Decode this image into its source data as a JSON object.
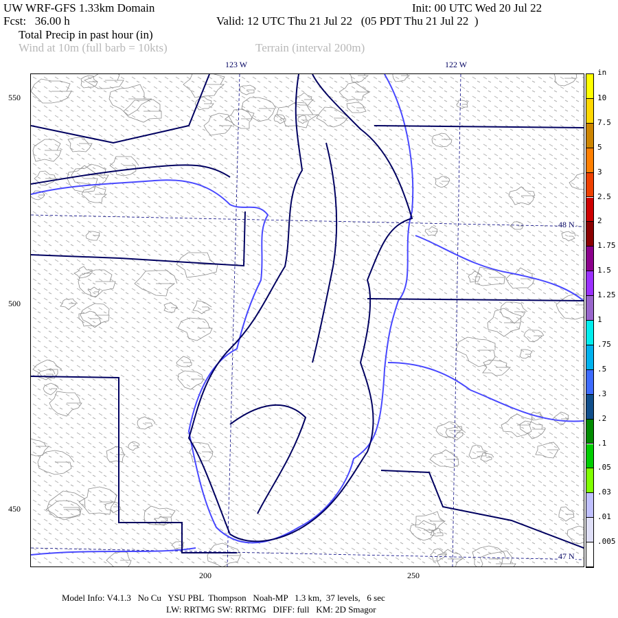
{
  "header": {
    "model_title": "UW WRF-GFS 1.33km Domain",
    "init": "Init: 00 UTC Wed 20 Jul 22",
    "fcst": "Fcst:   36.00 h",
    "valid": "Valid: 12 UTC Thu 21 Jul 22   (05 PDT Thu 21 Jul 22  )",
    "field": "Total Precip in past hour (in)",
    "overlay_wind": "Wind at 10m (full barb = 10kts)",
    "overlay_terrain": "Terrain (interval 200m)"
  },
  "map": {
    "lon_labels": [
      "123 W",
      "122 W"
    ],
    "lat_labels": [
      "48 N",
      "47 N"
    ],
    "y_ticks": [
      "550",
      "500",
      "450"
    ],
    "x_ticks": [
      "200",
      "250"
    ],
    "colors": {
      "coastline": "#000060",
      "rivers": "#4040ff",
      "terrain": "#909090",
      "grid": "#000080"
    }
  },
  "colorbar": {
    "unit": "in",
    "labels": [
      "10",
      "7.5",
      "5",
      "3",
      "2.5",
      "2",
      "1.75",
      "1.5",
      "1.25",
      "1",
      ".75",
      ".5",
      ".3",
      ".2",
      ".1",
      ".05",
      ".03",
      ".01",
      ".005"
    ],
    "colors": [
      "#ffff00",
      "#ffd700",
      "#cd8500",
      "#ff7f00",
      "#ee4000",
      "#cd0000",
      "#8b0000",
      "#8b008b",
      "#9b30ff",
      "#9966cc",
      "#00eeee",
      "#00b2ee",
      "#3d6bff",
      "#104e8b",
      "#008b00",
      "#00cd00",
      "#7fff00",
      "#c0c0ff",
      "#e0e0f8",
      "#ffffff"
    ]
  },
  "footer": {
    "line1": "Model Info: V4.1.3   No Cu   YSU PBL  Thompson   Noah-MP   1.3 km,  37 levels,   6 sec",
    "line2": "LW: RRTMG SW: RRTMG   DIFF: full   KM: 2D Smagor"
  }
}
